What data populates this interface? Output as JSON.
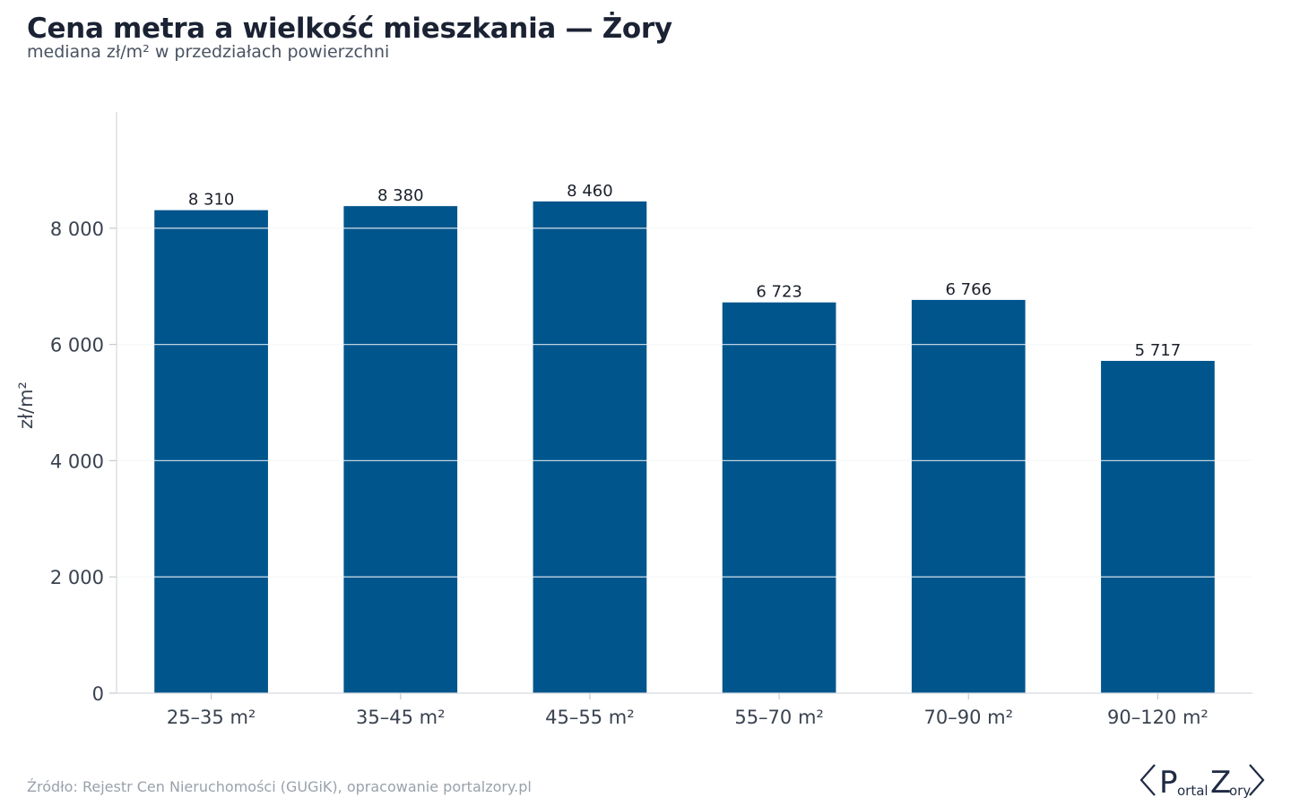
{
  "header": {
    "title": "Cena metra a wielkość mieszkania — Żory",
    "subtitle": "mediana zł/m² w przedziałach powierzchni"
  },
  "footer": {
    "source": "Źródło: Rejestr Cen Nieruchomości (GUGiK), opracowanie portalzory.pl",
    "logo_text": "PortalZory"
  },
  "colors": {
    "bar": "#00558c",
    "grid": "#e4e6ea",
    "axis": "#d7dadf",
    "tick_text": "#3a4250",
    "value_text": "#1a1f2a"
  },
  "chart_data": {
    "type": "bar",
    "title": "Cena metra a wielkość mieszkania — Żory",
    "subtitle": "mediana zł/m² w przedziałach powierzchni",
    "xlabel": "",
    "ylabel": "zł/m²",
    "categories": [
      "25–35 m²",
      "35–45 m²",
      "45–55 m²",
      "55–70 m²",
      "70–90 m²",
      "90–120 m²"
    ],
    "values": [
      8310,
      8380,
      8460,
      6723,
      6766,
      5717
    ],
    "value_labels": [
      "8 310",
      "8 380",
      "8 460",
      "6 723",
      "6 766",
      "5 717"
    ],
    "ylim": [
      0,
      10000
    ],
    "yticks": [
      0,
      2000,
      4000,
      6000,
      8000
    ],
    "ytick_labels": [
      "0",
      "2 000",
      "4 000",
      "6 000",
      "8 000"
    ],
    "grid": true,
    "legend": "none"
  }
}
